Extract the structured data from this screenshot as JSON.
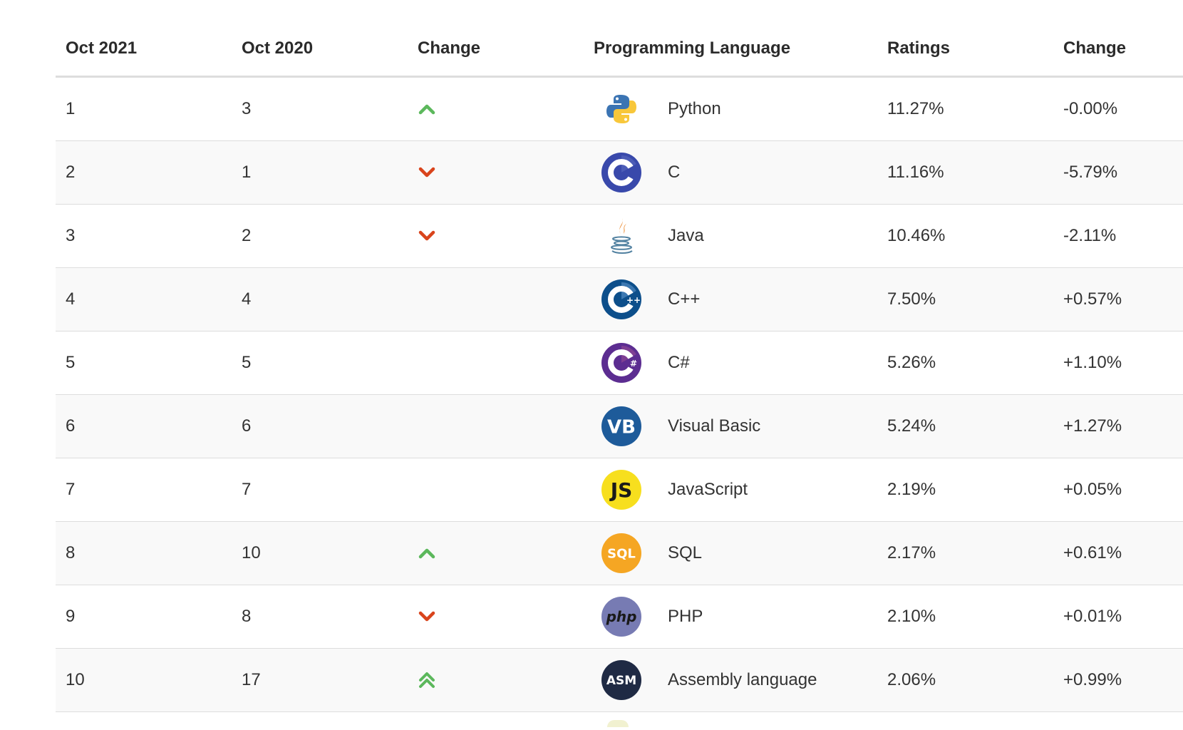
{
  "table": {
    "headers": {
      "current": "Oct 2021",
      "previous": "Oct 2020",
      "change": "Change",
      "language": "Programming Language",
      "ratings": "Ratings",
      "ratings_change": "Change"
    },
    "rows": [
      {
        "current": "1",
        "previous": "3",
        "trend": "up",
        "logo_icon": "python-logo-icon",
        "language": "Python",
        "rating": "11.27%",
        "change": "-0.00%"
      },
      {
        "current": "2",
        "previous": "1",
        "trend": "down",
        "logo_icon": "c-logo-icon",
        "language": "C",
        "rating": "11.16%",
        "change": "-5.79%"
      },
      {
        "current": "3",
        "previous": "2",
        "trend": "down",
        "logo_icon": "java-logo-icon",
        "language": "Java",
        "rating": "10.46%",
        "change": "-2.11%"
      },
      {
        "current": "4",
        "previous": "4",
        "trend": "none",
        "logo_icon": "cpp-logo-icon",
        "language": "C++",
        "rating": "7.50%",
        "change": "+0.57%"
      },
      {
        "current": "5",
        "previous": "5",
        "trend": "none",
        "logo_icon": "csharp-logo-icon",
        "language": "C#",
        "rating": "5.26%",
        "change": "+1.10%"
      },
      {
        "current": "6",
        "previous": "6",
        "trend": "none",
        "logo_icon": "visual-basic-logo-icon",
        "language": "Visual Basic",
        "rating": "5.24%",
        "change": "+1.27%"
      },
      {
        "current": "7",
        "previous": "7",
        "trend": "none",
        "logo_icon": "javascript-logo-icon",
        "language": "JavaScript",
        "rating": "2.19%",
        "change": "+0.05%"
      },
      {
        "current": "8",
        "previous": "10",
        "trend": "up",
        "logo_icon": "sql-logo-icon",
        "language": "SQL",
        "rating": "2.17%",
        "change": "+0.61%"
      },
      {
        "current": "9",
        "previous": "8",
        "trend": "down",
        "logo_icon": "php-logo-icon",
        "language": "PHP",
        "rating": "2.10%",
        "change": "+0.01%"
      },
      {
        "current": "10",
        "previous": "17",
        "trend": "double-up",
        "logo_icon": "assembly-logo-icon",
        "language": "Assembly language",
        "rating": "2.06%",
        "change": "+0.99%"
      }
    ]
  },
  "colors": {
    "trend_up": "#5cb85c",
    "trend_down": "#d9441c",
    "row_alt": "#f9f9f9",
    "border": "#dddddd"
  }
}
